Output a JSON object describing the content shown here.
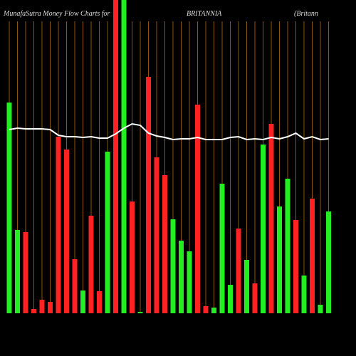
{
  "chart_data": {
    "type": "bar",
    "title": "MunafaSutra  Money Flow  Charts for",
    "subtitle": "BRITANNIA",
    "annotation": "(Britann",
    "values": [
      296,
      117,
      114,
      6,
      19,
      16,
      248,
      230,
      76,
      32,
      137,
      31,
      227,
      460,
      460,
      157,
      2,
      332,
      219,
      194,
      132,
      102,
      87,
      293,
      10,
      8,
      182,
      40,
      119,
      75,
      42,
      237,
      266,
      150,
      189,
      131,
      53,
      161,
      12,
      143
    ],
    "colors": [
      "#22ee22",
      "#22ee22",
      "#ff2222",
      "#ff2222",
      "#ff2222",
      "#ff2222",
      "#ff2222",
      "#ff2222",
      "#ff2222",
      "#22ee22",
      "#ff2222",
      "#ff2222",
      "#22ee22",
      "#ff2222",
      "#22ee22",
      "#ff2222",
      "#22ee22",
      "#ff2222",
      "#ff2222",
      "#ff2222",
      "#22ee22",
      "#22ee22",
      "#22ee22",
      "#ff2222",
      "#ff2222",
      "#22ee22",
      "#22ee22",
      "#22ee22",
      "#ff2222",
      "#22ee22",
      "#ff2222",
      "#22ee22",
      "#ff2222",
      "#22ee22",
      "#22ee22",
      "#ff2222",
      "#22ee22",
      "#ff2222",
      "#22ee22",
      "#22ee22"
    ],
    "line": [
      258,
      260,
      259,
      259,
      259,
      258,
      250,
      248,
      248,
      247,
      248,
      246,
      246,
      252,
      260,
      266,
      264,
      253,
      249,
      247,
      244,
      245,
      245,
      247,
      244,
      244,
      244,
      247,
      248,
      244,
      245,
      244,
      247,
      245,
      248,
      253,
      245,
      248,
      244,
      245
    ],
    "line_color": "#ffffff",
    "grid_color": "#b06a10",
    "ylim": [
      0,
      440
    ]
  }
}
